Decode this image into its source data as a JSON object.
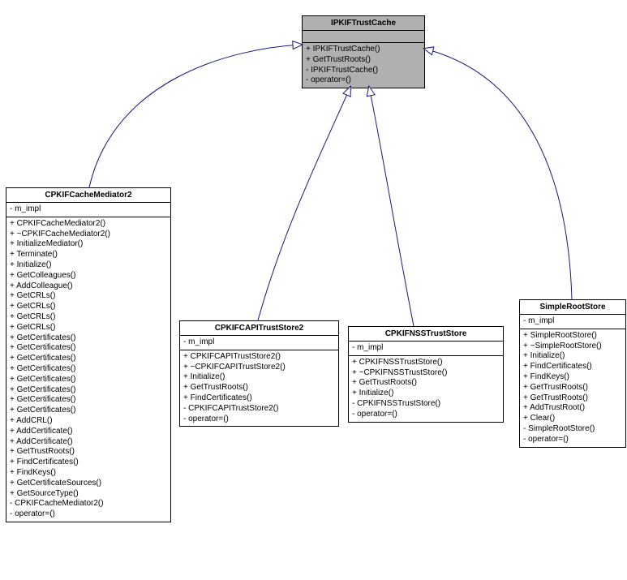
{
  "colors": {
    "shaded_fill": "#b0b0b0",
    "border": "#000000",
    "arrow": "#17177d",
    "background": "#ffffff"
  },
  "parent": {
    "title": "IPKIFTrustCache",
    "attrs": [],
    "methods": [
      "+ IPKIFTrustCache()",
      "+ GetTrustRoots()",
      "- IPKIFTrustCache()",
      "- operator=()"
    ]
  },
  "mediator": {
    "title": "CPKIFCacheMediator2",
    "attrs": [
      "- m_impl"
    ],
    "methods": [
      "+ CPKIFCacheMediator2()",
      "+ ~CPKIFCacheMediator2()",
      "+ InitializeMediator()",
      "+ Terminate()",
      "+ Initialize()",
      "+ GetColleagues()",
      "+ AddColleague()",
      "+ GetCRLs()",
      "+ GetCRLs()",
      "+ GetCRLs()",
      "+ GetCRLs()",
      "+ GetCertificates()",
      "+ GetCertificates()",
      "+ GetCertificates()",
      "+ GetCertificates()",
      "+ GetCertificates()",
      "+ GetCertificates()",
      "+ GetCertificates()",
      "+ GetCertificates()",
      "+ AddCRL()",
      "+ AddCertificate()",
      "+ AddCertificate()",
      "+ GetTrustRoots()",
      "+ FindCertificates()",
      "+ FindKeys()",
      "+ GetCertificateSources()",
      "+ GetSourceType()",
      "- CPKIFCacheMediator2()",
      "- operator=()"
    ]
  },
  "capi": {
    "title": "CPKIFCAPITrustStore2",
    "attrs": [
      "- m_impl"
    ],
    "methods": [
      "+ CPKIFCAPITrustStore2()",
      "+ ~CPKIFCAPITrustStore2()",
      "+ Initialize()",
      "+ GetTrustRoots()",
      "+ FindCertificates()",
      "- CPKIFCAPITrustStore2()",
      "- operator=()"
    ]
  },
  "nss": {
    "title": "CPKIFNSSTrustStore",
    "attrs": [
      "- m_impl"
    ],
    "methods": [
      "+ CPKIFNSSTrustStore()",
      "+ ~CPKIFNSSTrustStore()",
      "+ GetTrustRoots()",
      "+ Initialize()",
      "- CPKIFNSSTrustStore()",
      "- operator=()"
    ]
  },
  "simple": {
    "title": "SimpleRootStore",
    "attrs": [
      "- m_impl"
    ],
    "methods": [
      "+ SimpleRootStore()",
      "+ ~SimpleRootStore()",
      "+ Initialize()",
      "+ FindCertificates()",
      "+ FindKeys()",
      "+ GetTrustRoots()",
      "+ GetTrustRoots()",
      "+ AddTrustRoot()",
      "+ Clear()",
      "- SimpleRootStore()",
      "- operator=()"
    ]
  }
}
